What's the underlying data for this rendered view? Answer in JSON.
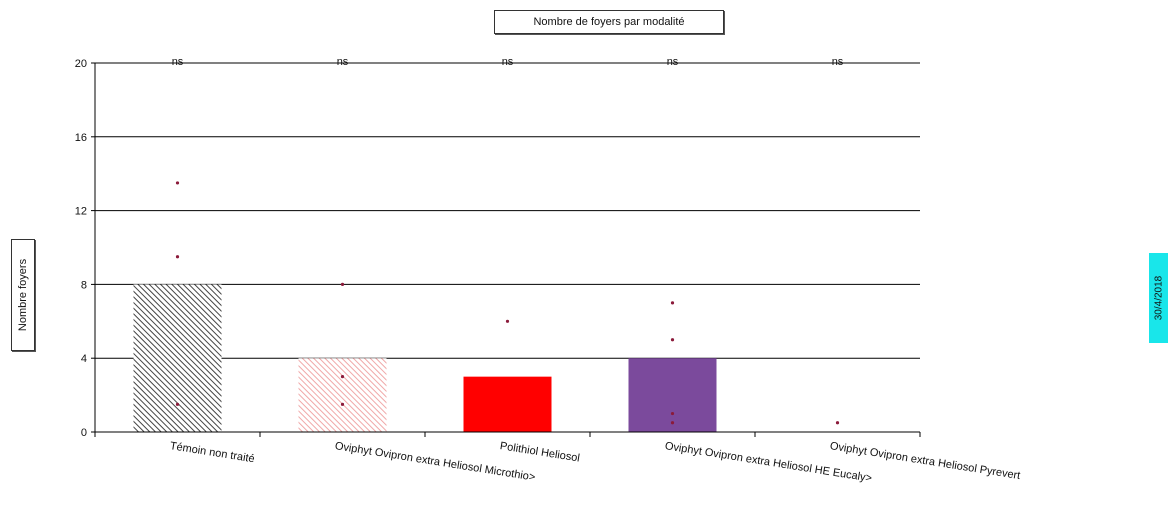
{
  "title": "Nombre de foyers par modalité",
  "date_stamp": "30/4/2018",
  "chart_data": {
    "type": "bar",
    "title": "Nombre de foyers par modalité",
    "xlabel": "",
    "ylabel": "Nombre foyers",
    "ylim": [
      0,
      20
    ],
    "yticks": [
      0,
      4,
      8,
      12,
      16,
      20
    ],
    "grid": true,
    "categories": [
      "Témoin non traité",
      "Oviphyt Ovipron extra Heliosol Microthio>",
      "Polithiol Heliosol",
      "Oviphyt Ovipron extra Heliosol HE Eucaly>",
      "Oviphyt Ovipron extra Heliosol Pyrevert"
    ],
    "values": [
      8,
      4,
      3,
      4,
      0
    ],
    "significance": [
      "ns",
      "ns",
      "ns",
      "ns",
      "ns"
    ],
    "replicates": [
      [
        13.5,
        9.5,
        1.5
      ],
      [
        8,
        3,
        1.5
      ],
      [
        6
      ],
      [
        7,
        5,
        1,
        0.5
      ],
      [
        0.5
      ]
    ],
    "bar_colors": [
      "#4a4a4a",
      "#f2b3b3",
      "#ff0000",
      "#7b4a9c",
      "#cccccc"
    ],
    "bar_patterns": [
      "hatch",
      "hatch",
      "solid",
      "solid",
      "solid"
    ]
  }
}
